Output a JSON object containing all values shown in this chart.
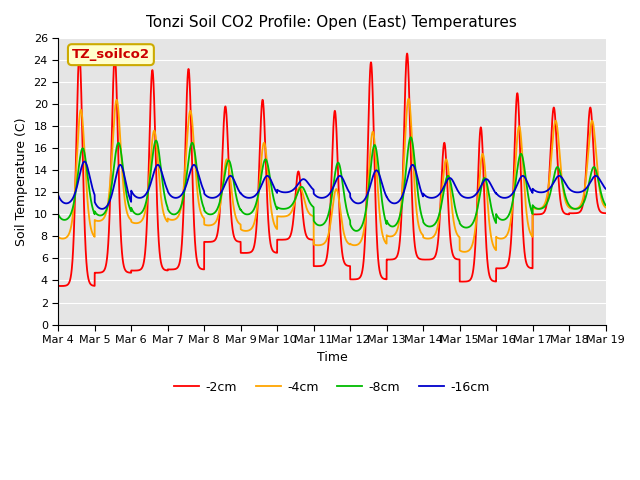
{
  "title": "Tonzi Soil CO2 Profile: Open (East) Temperatures",
  "xlabel": "Time",
  "ylabel": "Soil Temperature (C)",
  "ylim": [
    0,
    26
  ],
  "yticks": [
    0,
    2,
    4,
    6,
    8,
    10,
    12,
    14,
    16,
    18,
    20,
    22,
    24,
    26
  ],
  "xtick_labels": [
    "Mar 4",
    "Mar 5",
    "Mar 6",
    "Mar 7",
    "Mar 8",
    "Mar 9",
    "Mar 10",
    "Mar 11",
    "Mar 12",
    "Mar 13",
    "Mar 14",
    "Mar 15",
    "Mar 16",
    "Mar 17",
    "Mar 18",
    "Mar 19"
  ],
  "line_colors": [
    "#ff0000",
    "#ffa500",
    "#00bb00",
    "#0000cc"
  ],
  "line_labels": [
    "-2cm",
    "-4cm",
    "-8cm",
    "-16cm"
  ],
  "annotation_text": "TZ_soilco2",
  "annotation_color": "#cc0000",
  "annotation_bg": "#ffffcc",
  "annotation_border": "#ccaa00",
  "background_color": "#e5e5e5",
  "grid_color": "#ffffff",
  "n_days": 15,
  "day_params": {
    "peaks_2cm": [
      24.5,
      24.3,
      23.1,
      23.2,
      19.8,
      20.4,
      13.9,
      19.4,
      23.8,
      24.6,
      16.5,
      17.9,
      21.0,
      19.7,
      19.7
    ],
    "mins_2cm": [
      3.5,
      4.7,
      4.9,
      5.0,
      7.5,
      6.5,
      7.7,
      5.3,
      4.1,
      5.9,
      5.9,
      3.9,
      5.1,
      10.0,
      10.1
    ],
    "peaks_4cm": [
      19.5,
      20.4,
      17.6,
      19.4,
      15.0,
      16.5,
      12.5,
      12.3,
      17.5,
      20.5,
      15.0,
      15.5,
      18.0,
      18.5,
      18.5
    ],
    "mins_4cm": [
      7.8,
      9.4,
      9.2,
      9.5,
      9.0,
      8.5,
      9.8,
      7.2,
      7.2,
      8.0,
      7.8,
      6.6,
      7.8,
      10.5,
      10.5
    ],
    "peaks_8cm": [
      16.0,
      16.5,
      16.7,
      16.5,
      14.9,
      15.0,
      12.5,
      14.7,
      16.3,
      17.0,
      13.5,
      13.3,
      15.5,
      14.3,
      14.3
    ],
    "mins_8cm": [
      9.5,
      9.9,
      10.0,
      10.0,
      10.0,
      10.0,
      10.5,
      9.0,
      8.5,
      8.9,
      8.9,
      8.8,
      9.5,
      10.5,
      10.5
    ],
    "peaks_16cm": [
      14.8,
      14.5,
      14.5,
      14.5,
      13.5,
      13.5,
      13.2,
      13.5,
      14.0,
      14.5,
      13.3,
      13.2,
      13.5,
      13.5,
      13.5
    ],
    "mins_16cm": [
      11.0,
      10.5,
      11.5,
      11.5,
      11.5,
      11.5,
      12.0,
      11.5,
      11.0,
      11.0,
      11.5,
      11.5,
      11.5,
      12.0,
      12.0
    ],
    "peak_time_2cm": [
      0.58,
      0.55,
      0.58,
      0.57,
      0.58,
      0.6,
      0.58,
      0.58,
      0.57,
      0.56,
      0.58,
      0.58,
      0.58,
      0.58,
      0.58
    ],
    "peak_time_4cm": [
      0.62,
      0.6,
      0.63,
      0.62,
      0.62,
      0.64,
      0.62,
      0.62,
      0.62,
      0.6,
      0.63,
      0.63,
      0.63,
      0.63,
      0.63
    ],
    "peak_time_8cm": [
      0.67,
      0.65,
      0.68,
      0.67,
      0.67,
      0.68,
      0.67,
      0.67,
      0.67,
      0.66,
      0.68,
      0.68,
      0.68,
      0.68,
      0.68
    ],
    "peak_time_16cm": [
      0.72,
      0.7,
      0.73,
      0.72,
      0.72,
      0.73,
      0.72,
      0.72,
      0.72,
      0.71,
      0.73,
      0.73,
      0.73,
      0.73,
      0.73
    ]
  },
  "sharpness_2cm": 3.5,
  "sharpness_4cm": 2.0,
  "sharpness_8cm": 1.3,
  "sharpness_16cm": 1.0
}
